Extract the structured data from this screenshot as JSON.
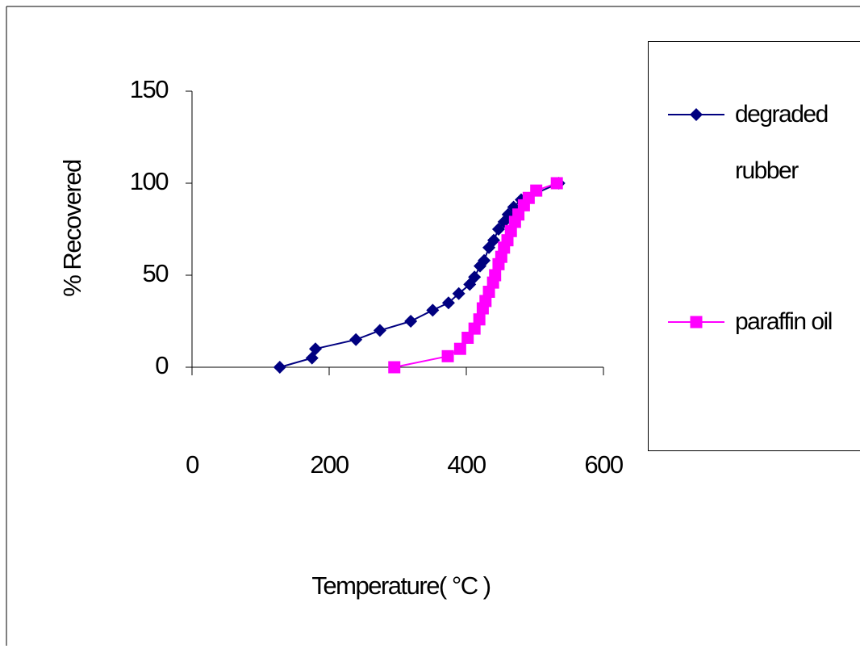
{
  "chart_data": {
    "type": "line",
    "x_label": "Temperature( °C )",
    "y_label": "% Recovered",
    "xlim": [
      0,
      600
    ],
    "xticks": [
      0,
      200,
      400,
      600
    ],
    "ylim": [
      0,
      150
    ],
    "yticks": [
      0,
      50,
      100,
      150
    ],
    "legend": "right",
    "series": [
      {
        "name": "degraded rubber",
        "color": "#000080",
        "marker": "diamond",
        "x": [
          128,
          175,
          180,
          239,
          274,
          319,
          351,
          374,
          389,
          405,
          412,
          420,
          426,
          433,
          440,
          447,
          455,
          461,
          469,
          480,
          535
        ],
        "values": [
          0,
          5,
          10,
          15,
          20,
          25,
          31,
          35,
          40,
          45,
          49,
          55,
          58,
          65,
          69,
          75,
          79,
          83,
          87,
          91,
          100
        ]
      },
      {
        "name": "paraffin oil",
        "color": "#ff00ff",
        "marker": "square",
        "x": [
          295,
          373,
          391,
          402,
          412,
          419,
          424,
          428,
          433,
          439,
          442,
          447,
          451,
          455,
          460,
          465,
          471,
          476,
          484,
          491,
          502,
          532
        ],
        "values": [
          0,
          6,
          10,
          16,
          21,
          26,
          32,
          36,
          41,
          46,
          50,
          56,
          60,
          65,
          69,
          74,
          79,
          83,
          88,
          92,
          96,
          100
        ]
      }
    ]
  }
}
